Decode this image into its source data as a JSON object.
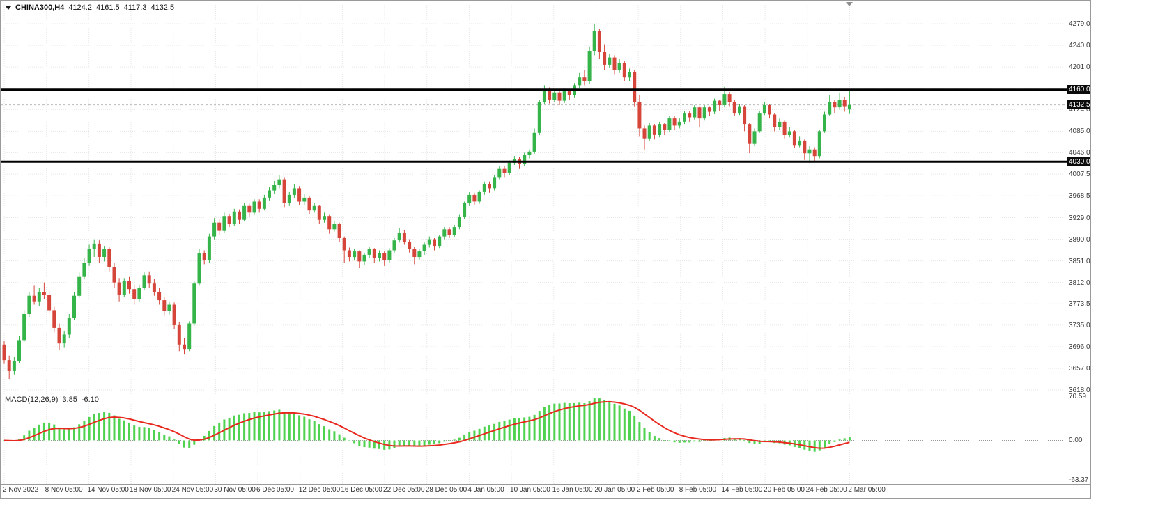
{
  "window": {
    "title": {
      "symbol_period": "CHINA300,H4",
      "open": "4124.2",
      "high": "4161.5",
      "low": "4117.3",
      "close": "4132.5"
    }
  },
  "macd_label": {
    "name": "MACD(12,26,9)",
    "main_value": "3.85",
    "signal_value": "-6.10"
  },
  "chart_data": {
    "type": "candlestick",
    "symbol": "CHINA300",
    "timeframe": "H4",
    "title": "CHINA300,H4 4124.2 4161.5 4117.3 4132.5",
    "price_axis": {
      "min": 3613.0,
      "max": 4320.5,
      "ticks": [
        4279,
        4240,
        4201,
        4162,
        4124,
        4085,
        4046,
        4007.5,
        3968.5,
        3929,
        3890,
        3851,
        3812,
        3773.5,
        3735,
        3696,
        3657,
        3618
      ]
    },
    "macd_axis": {
      "min": -69.5,
      "max": 75.0,
      "ticks": [
        70.59,
        0,
        -63.37
      ]
    },
    "levels": [
      4160.0,
      4030.0
    ],
    "current_price": 4132.5,
    "indicator": {
      "name": "MACD",
      "fast": 12,
      "slow": 26,
      "signal": 9,
      "current_main": 3.85,
      "current_signal": -6.1
    },
    "time_labels": [
      "2 Nov 2022",
      "8 Nov 05:00",
      "14 Nov 05:00",
      "18 Nov 05:00",
      "24 Nov 05:00",
      "30 Nov 05:00",
      "6 Dec 05:00",
      "12 Dec 05:00",
      "16 Dec 05:00",
      "22 Dec 05:00",
      "28 Dec 05:00",
      "4 Jan 05:00",
      "10 Jan 05:00",
      "16 Jan 05:00",
      "20 Jan 05:00",
      "2 Feb 05:00",
      "8 Feb 05:00",
      "14 Feb 05:00",
      "20 Feb 05:00",
      "24 Feb 05:00",
      "2 Mar 05:00"
    ],
    "legend_position": "none",
    "grid": true,
    "candles": [
      [
        3700,
        3706,
        3665,
        3672
      ],
      [
        3672,
        3680,
        3638,
        3652
      ],
      [
        3652,
        3678,
        3646,
        3670
      ],
      [
        3670,
        3715,
        3666,
        3708
      ],
      [
        3708,
        3762,
        3705,
        3755
      ],
      [
        3755,
        3795,
        3750,
        3788
      ],
      [
        3788,
        3806,
        3772,
        3778
      ],
      [
        3778,
        3802,
        3770,
        3795
      ],
      [
        3795,
        3812,
        3782,
        3790
      ],
      [
        3790,
        3798,
        3755,
        3762
      ],
      [
        3762,
        3768,
        3722,
        3730
      ],
      [
        3730,
        3738,
        3690,
        3702
      ],
      [
        3702,
        3725,
        3694,
        3718
      ],
      [
        3718,
        3755,
        3712,
        3748
      ],
      [
        3748,
        3795,
        3744,
        3788
      ],
      [
        3788,
        3830,
        3784,
        3822
      ],
      [
        3822,
        3856,
        3818,
        3848
      ],
      [
        3848,
        3880,
        3842,
        3872
      ],
      [
        3872,
        3890,
        3858,
        3882
      ],
      [
        3882,
        3888,
        3848,
        3858
      ],
      [
        3858,
        3878,
        3850,
        3872
      ],
      [
        3872,
        3876,
        3832,
        3840
      ],
      [
        3840,
        3848,
        3802,
        3812
      ],
      [
        3812,
        3820,
        3778,
        3790
      ],
      [
        3790,
        3820,
        3786,
        3815
      ],
      [
        3815,
        3822,
        3792,
        3800
      ],
      [
        3800,
        3808,
        3772,
        3782
      ],
      [
        3782,
        3808,
        3778,
        3802
      ],
      [
        3802,
        3830,
        3798,
        3825
      ],
      [
        3825,
        3832,
        3802,
        3810
      ],
      [
        3810,
        3818,
        3788,
        3795
      ],
      [
        3795,
        3802,
        3772,
        3780
      ],
      [
        3780,
        3786,
        3752,
        3760
      ],
      [
        3760,
        3778,
        3754,
        3772
      ],
      [
        3772,
        3776,
        3728,
        3735
      ],
      [
        3735,
        3740,
        3688,
        3700
      ],
      [
        3700,
        3712,
        3682,
        3692
      ],
      [
        3692,
        3742,
        3688,
        3738
      ],
      [
        3738,
        3815,
        3734,
        3810
      ],
      [
        3810,
        3872,
        3806,
        3865
      ],
      [
        3865,
        3870,
        3845,
        3852
      ],
      [
        3852,
        3900,
        3848,
        3895
      ],
      [
        3895,
        3928,
        3890,
        3920
      ],
      [
        3920,
        3926,
        3898,
        3905
      ],
      [
        3905,
        3938,
        3902,
        3932
      ],
      [
        3932,
        3936,
        3912,
        3918
      ],
      [
        3918,
        3945,
        3914,
        3940
      ],
      [
        3940,
        3944,
        3918,
        3925
      ],
      [
        3925,
        3955,
        3922,
        3950
      ],
      [
        3950,
        3954,
        3930,
        3938
      ],
      [
        3938,
        3962,
        3934,
        3958
      ],
      [
        3958,
        3962,
        3938,
        3945
      ],
      [
        3945,
        3970,
        3942,
        3965
      ],
      [
        3965,
        3985,
        3960,
        3978
      ],
      [
        3978,
        3995,
        3972,
        3988
      ],
      [
        3988,
        4006,
        3982,
        3998
      ],
      [
        3998,
        4002,
        3948,
        3955
      ],
      [
        3955,
        3975,
        3950,
        3970
      ],
      [
        3970,
        3990,
        3965,
        3982
      ],
      [
        3982,
        3986,
        3952,
        3958
      ],
      [
        3958,
        3972,
        3952,
        3965
      ],
      [
        3965,
        3968,
        3936,
        3942
      ],
      [
        3942,
        3956,
        3938,
        3950
      ],
      [
        3950,
        3952,
        3918,
        3925
      ],
      [
        3925,
        3938,
        3920,
        3932
      ],
      [
        3932,
        3934,
        3900,
        3908
      ],
      [
        3908,
        3922,
        3904,
        3918
      ],
      [
        3918,
        3920,
        3885,
        3892
      ],
      [
        3892,
        3895,
        3848,
        3870
      ],
      [
        3870,
        3875,
        3850,
        3858
      ],
      [
        3858,
        3872,
        3852,
        3868
      ],
      [
        3868,
        3870,
        3838,
        3850
      ],
      [
        3850,
        3866,
        3844,
        3862
      ],
      [
        3862,
        3876,
        3856,
        3872
      ],
      [
        3872,
        3874,
        3848,
        3856
      ],
      [
        3856,
        3870,
        3850,
        3865
      ],
      [
        3865,
        3868,
        3842,
        3852
      ],
      [
        3852,
        3874,
        3848,
        3870
      ],
      [
        3870,
        3892,
        3866,
        3888
      ],
      [
        3888,
        3910,
        3884,
        3902
      ],
      [
        3902,
        3906,
        3880,
        3885
      ],
      [
        3885,
        3890,
        3866,
        3872
      ],
      [
        3872,
        3876,
        3845,
        3858
      ],
      [
        3858,
        3872,
        3852,
        3868
      ],
      [
        3868,
        3884,
        3862,
        3880
      ],
      [
        3880,
        3895,
        3875,
        3890
      ],
      [
        3890,
        3892,
        3870,
        3878
      ],
      [
        3878,
        3898,
        3874,
        3895
      ],
      [
        3895,
        3912,
        3890,
        3908
      ],
      [
        3908,
        3912,
        3892,
        3898
      ],
      [
        3898,
        3916,
        3894,
        3912
      ],
      [
        3912,
        3934,
        3908,
        3930
      ],
      [
        3930,
        3958,
        3926,
        3955
      ],
      [
        3955,
        3975,
        3950,
        3970
      ],
      [
        3970,
        3974,
        3952,
        3958
      ],
      [
        3958,
        3978,
        3954,
        3975
      ],
      [
        3975,
        3994,
        3970,
        3990
      ],
      [
        3990,
        3994,
        3974,
        3982
      ],
      [
        3982,
        4006,
        3978,
        4002
      ],
      [
        4002,
        4022,
        3998,
        4018
      ],
      [
        4018,
        4022,
        4002,
        4010
      ],
      [
        4010,
        4032,
        4006,
        4028
      ],
      [
        4028,
        4040,
        4024,
        4035
      ],
      [
        4035,
        4038,
        4018,
        4026
      ],
      [
        4026,
        4046,
        4022,
        4042
      ],
      [
        4042,
        4052,
        4036,
        4048
      ],
      [
        4048,
        4090,
        4044,
        4082
      ],
      [
        4082,
        4142,
        4078,
        4138
      ],
      [
        4138,
        4168,
        4134,
        4160
      ],
      [
        4160,
        4164,
        4135,
        4142
      ],
      [
        4142,
        4160,
        4138,
        4155
      ],
      [
        4155,
        4158,
        4132,
        4140
      ],
      [
        4140,
        4162,
        4136,
        4158
      ],
      [
        4158,
        4160,
        4142,
        4150
      ],
      [
        4150,
        4172,
        4145,
        4168
      ],
      [
        4168,
        4190,
        4162,
        4182
      ],
      [
        4182,
        4196,
        4168,
        4175
      ],
      [
        4175,
        4238,
        4170,
        4230
      ],
      [
        4230,
        4279,
        4222,
        4266
      ],
      [
        4266,
        4270,
        4215,
        4228
      ],
      [
        4228,
        4242,
        4195,
        4205
      ],
      [
        4205,
        4225,
        4200,
        4218
      ],
      [
        4218,
        4222,
        4188,
        4195
      ],
      [
        4195,
        4215,
        4190,
        4208
      ],
      [
        4208,
        4212,
        4175,
        4182
      ],
      [
        4182,
        4198,
        4176,
        4192
      ],
      [
        4192,
        4196,
        4130,
        4138
      ],
      [
        4138,
        4150,
        4075,
        4090
      ],
      [
        4090,
        4095,
        4052,
        4072
      ],
      [
        4072,
        4100,
        4068,
        4095
      ],
      [
        4095,
        4098,
        4070,
        4078
      ],
      [
        4078,
        4102,
        4074,
        4098
      ],
      [
        4098,
        4100,
        4078,
        4088
      ],
      [
        4088,
        4112,
        4084,
        4108
      ],
      [
        4108,
        4112,
        4088,
        4095
      ],
      [
        4095,
        4108,
        4090,
        4102
      ],
      [
        4102,
        4122,
        4098,
        4118
      ],
      [
        4118,
        4122,
        4102,
        4110
      ],
      [
        4110,
        4132,
        4106,
        4128
      ],
      [
        4128,
        4130,
        4092,
        4108
      ],
      [
        4108,
        4132,
        4104,
        4128
      ],
      [
        4128,
        4130,
        4112,
        4120
      ],
      [
        4120,
        4144,
        4116,
        4140
      ],
      [
        4140,
        4142,
        4122,
        4132
      ],
      [
        4132,
        4165,
        4128,
        4152
      ],
      [
        4152,
        4156,
        4130,
        4138
      ],
      [
        4138,
        4142,
        4112,
        4118
      ],
      [
        4118,
        4134,
        4114,
        4130
      ],
      [
        4130,
        4132,
        4085,
        4098
      ],
      [
        4098,
        4100,
        4045,
        4062
      ],
      [
        4062,
        4090,
        4058,
        4085
      ],
      [
        4085,
        4122,
        4082,
        4118
      ],
      [
        4118,
        4138,
        4114,
        4132
      ],
      [
        4132,
        4134,
        4108,
        4115
      ],
      [
        4115,
        4118,
        4085,
        4092
      ],
      [
        4092,
        4108,
        4088,
        4102
      ],
      [
        4102,
        4104,
        4072,
        4078
      ],
      [
        4078,
        4092,
        4074,
        4085
      ],
      [
        4085,
        4088,
        4055,
        4060
      ],
      [
        4060,
        4075,
        4056,
        4068
      ],
      [
        4068,
        4070,
        4033,
        4045
      ],
      [
        4045,
        4058,
        4028,
        4052
      ],
      [
        4052,
        4056,
        4030,
        4040
      ],
      [
        4040,
        4088,
        4036,
        4085
      ],
      [
        4085,
        4120,
        4082,
        4115
      ],
      [
        4115,
        4150,
        4112,
        4138
      ],
      [
        4138,
        4142,
        4118,
        4128
      ],
      [
        4128,
        4155,
        4124,
        4142
      ],
      [
        4142,
        4146,
        4120,
        4130
      ],
      [
        4124.2,
        4161.5,
        4117.3,
        4132.5
      ]
    ],
    "colors": {
      "up": "#35b44a",
      "down": "#d6453a",
      "macd_hist": "#4fd24f",
      "macd_signal": "#e8281e",
      "level": "#000000",
      "grid": "#e6e6e6",
      "zero_line": "#9a9a9a",
      "bid_line": "#bbbbbb",
      "badge_bg": "#0b0b0b",
      "badge_fg": "#ffffff",
      "axis_text": "#3a3a3a"
    }
  }
}
